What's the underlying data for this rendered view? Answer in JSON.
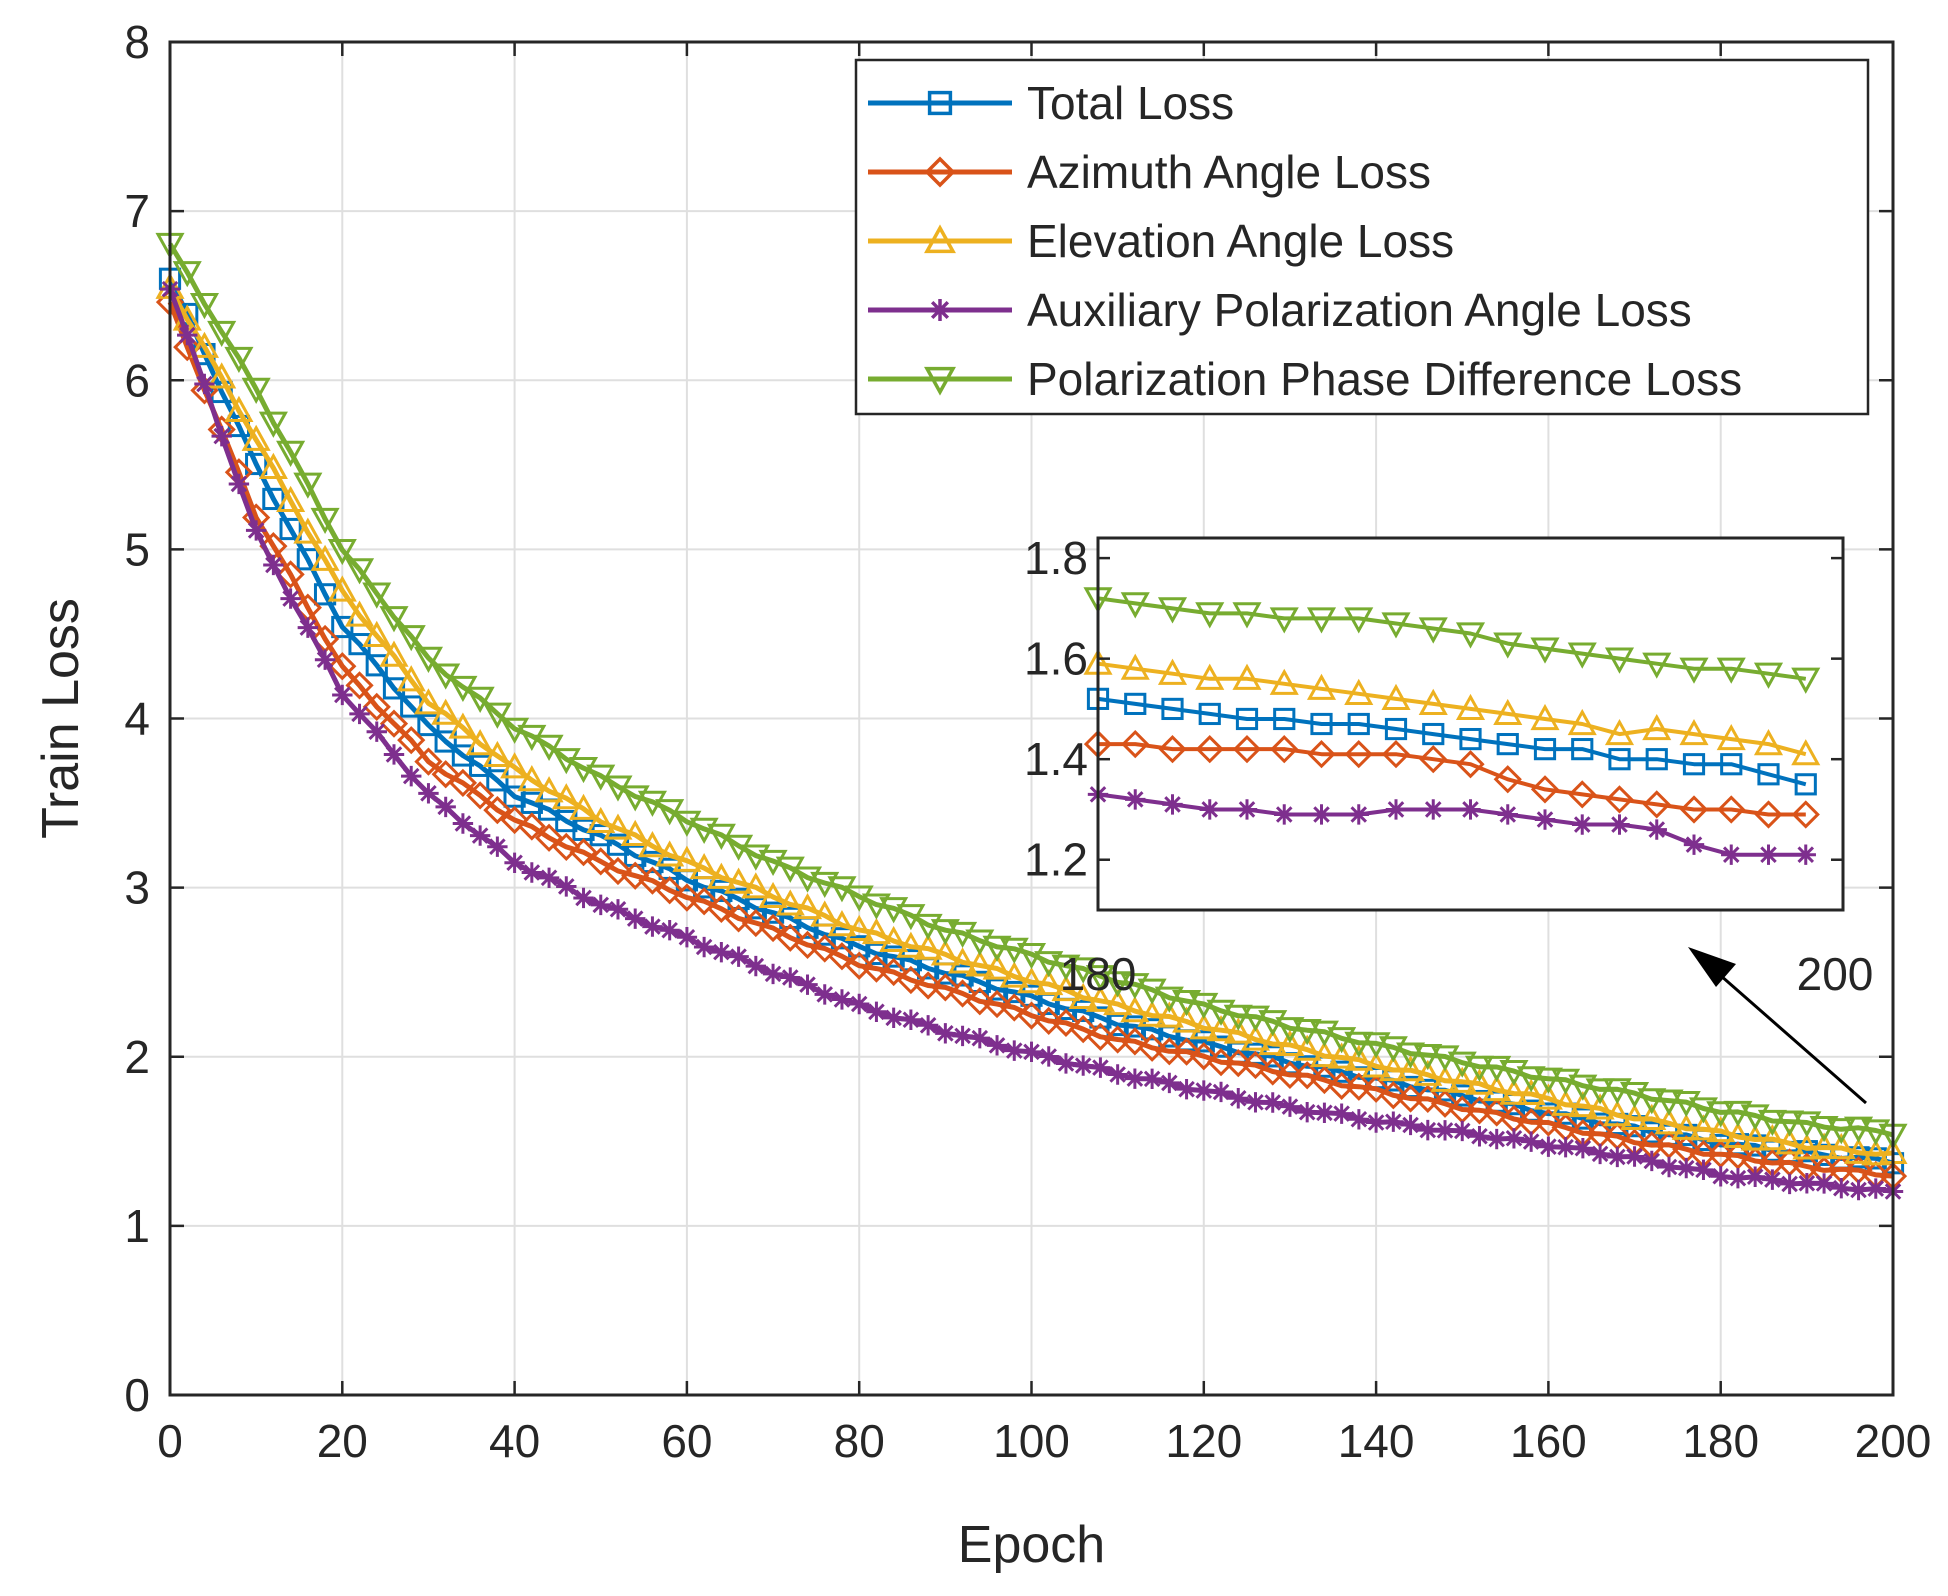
{
  "chart_data": {
    "type": "line",
    "xlabel": "Epoch",
    "ylabel": "Train Loss",
    "xlim": [
      0,
      200
    ],
    "ylim": [
      0,
      8
    ],
    "xticks": [
      0,
      20,
      40,
      60,
      80,
      100,
      120,
      140,
      160,
      180,
      200
    ],
    "yticks": [
      0,
      1,
      2,
      3,
      4,
      5,
      6,
      7,
      8
    ],
    "grid": true,
    "legend_position": "top-right",
    "x": [
      0,
      10,
      20,
      30,
      40,
      50,
      60,
      70,
      80,
      90,
      100,
      110,
      120,
      130,
      140,
      150,
      160,
      170,
      180,
      190,
      200
    ],
    "series": [
      {
        "name": "Total Loss",
        "color": "#0072BD",
        "marker": "square",
        "values": [
          6.6,
          5.5,
          4.55,
          3.95,
          3.55,
          3.3,
          3.05,
          2.85,
          2.65,
          2.5,
          2.35,
          2.2,
          2.08,
          1.97,
          1.87,
          1.77,
          1.67,
          1.58,
          1.49,
          1.43,
          1.38
        ]
      },
      {
        "name": "Azimuth Angle Loss",
        "color": "#D95319",
        "marker": "diamond",
        "values": [
          6.45,
          5.2,
          4.3,
          3.75,
          3.4,
          3.15,
          2.95,
          2.75,
          2.55,
          2.4,
          2.25,
          2.1,
          2.0,
          1.9,
          1.8,
          1.7,
          1.6,
          1.5,
          1.42,
          1.35,
          1.3
        ]
      },
      {
        "name": "Elevation Angle Loss",
        "color": "#EDB120",
        "marker": "triangle-up",
        "values": [
          6.55,
          5.65,
          4.75,
          4.1,
          3.7,
          3.4,
          3.15,
          2.95,
          2.75,
          2.6,
          2.45,
          2.3,
          2.18,
          2.06,
          1.95,
          1.85,
          1.75,
          1.64,
          1.55,
          1.47,
          1.42
        ]
      },
      {
        "name": "Auxiliary Polarization Angle Loss",
        "color": "#7E2F8E",
        "marker": "asterisk",
        "values": [
          6.55,
          5.1,
          4.15,
          3.55,
          3.15,
          2.9,
          2.7,
          2.5,
          2.3,
          2.15,
          2.02,
          1.9,
          1.8,
          1.7,
          1.62,
          1.55,
          1.48,
          1.4,
          1.3,
          1.25,
          1.2
        ]
      },
      {
        "name": "Polarization Phase Difference Loss",
        "color": "#77AC30",
        "marker": "triangle-down",
        "values": [
          6.8,
          5.95,
          5.0,
          4.35,
          3.95,
          3.65,
          3.4,
          3.15,
          2.95,
          2.75,
          2.6,
          2.45,
          2.3,
          2.18,
          2.07,
          1.97,
          1.87,
          1.78,
          1.68,
          1.6,
          1.55
        ]
      }
    ],
    "inset": {
      "xlim": [
        180,
        200
      ],
      "ylim": [
        1.1,
        1.84
      ],
      "yticks": [
        1.2,
        1.4,
        1.6,
        1.8
      ],
      "xtick_labels": [
        "180",
        "200"
      ],
      "x": [
        180,
        181,
        182,
        183,
        184,
        185,
        186,
        187,
        188,
        189,
        190,
        191,
        192,
        193,
        194,
        195,
        196,
        197,
        198,
        199
      ],
      "series": [
        {
          "name": "Total Loss",
          "values": [
            1.52,
            1.51,
            1.5,
            1.49,
            1.48,
            1.48,
            1.47,
            1.47,
            1.46,
            1.45,
            1.44,
            1.43,
            1.42,
            1.42,
            1.4,
            1.4,
            1.39,
            1.39,
            1.37,
            1.35
          ]
        },
        {
          "name": "Azimuth Angle Loss",
          "values": [
            1.43,
            1.43,
            1.42,
            1.42,
            1.42,
            1.42,
            1.41,
            1.41,
            1.41,
            1.4,
            1.39,
            1.36,
            1.34,
            1.33,
            1.32,
            1.31,
            1.3,
            1.3,
            1.29,
            1.29
          ]
        },
        {
          "name": "Elevation Angle Loss",
          "values": [
            1.59,
            1.58,
            1.57,
            1.56,
            1.56,
            1.55,
            1.54,
            1.53,
            1.52,
            1.51,
            1.5,
            1.49,
            1.48,
            1.47,
            1.45,
            1.46,
            1.45,
            1.44,
            1.43,
            1.41
          ]
        },
        {
          "name": "Auxiliary Polarization Angle Loss",
          "values": [
            1.33,
            1.32,
            1.31,
            1.3,
            1.3,
            1.29,
            1.29,
            1.29,
            1.3,
            1.3,
            1.3,
            1.29,
            1.28,
            1.27,
            1.27,
            1.26,
            1.23,
            1.21,
            1.21,
            1.21
          ]
        },
        {
          "name": "Polarization Phase Difference Loss",
          "values": [
            1.72,
            1.71,
            1.7,
            1.69,
            1.69,
            1.68,
            1.68,
            1.68,
            1.67,
            1.66,
            1.65,
            1.63,
            1.62,
            1.61,
            1.6,
            1.59,
            1.58,
            1.58,
            1.57,
            1.56
          ]
        }
      ]
    }
  }
}
